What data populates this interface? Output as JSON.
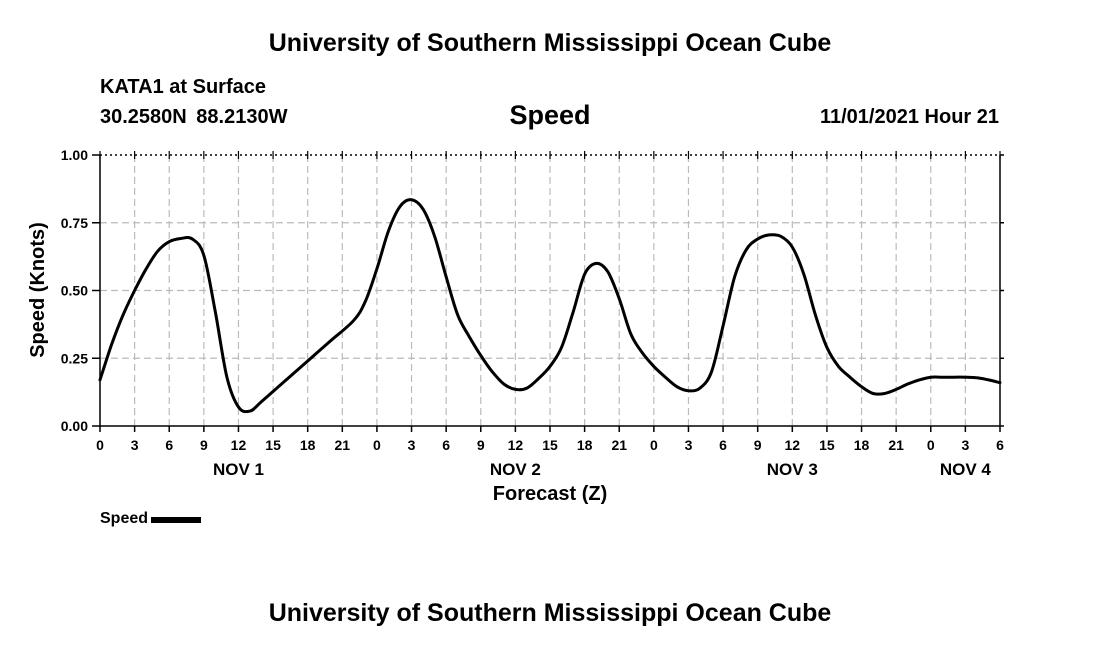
{
  "header": {
    "title": "University of Southern Mississippi Ocean Cube",
    "station": "KATA1 at Surface",
    "coords": "30.2580N  88.2130W",
    "panel_title": "Speed",
    "timestamp": "11/01/2021 Hour 21"
  },
  "footer": {
    "title": "University of Southern Mississippi Ocean Cube"
  },
  "legend": {
    "label": "Speed"
  },
  "chart_data": {
    "type": "line",
    "title": "Speed",
    "xlabel": "Forecast (Z)",
    "ylabel": "Speed (Knots)",
    "ylim": [
      0,
      1
    ],
    "xlim_hours": [
      0,
      78
    ],
    "grid": true,
    "y_ticks": [
      0,
      0.25,
      0.5,
      0.75,
      1.0
    ],
    "y_tick_labels": [
      "0.00",
      "0.25",
      "0.50",
      "0.75",
      "1.00"
    ],
    "x_tick_hours": [
      0,
      3,
      6,
      9,
      12,
      15,
      18,
      21,
      24,
      27,
      30,
      33,
      36,
      39,
      42,
      45,
      48,
      51,
      54,
      57,
      60,
      63,
      66,
      69,
      72,
      75,
      78
    ],
    "x_tick_labels": [
      "0",
      "3",
      "6",
      "9",
      "12",
      "15",
      "18",
      "21",
      "0",
      "3",
      "6",
      "9",
      "12",
      "15",
      "18",
      "21",
      "0",
      "3",
      "6",
      "9",
      "12",
      "15",
      "18",
      "21",
      "0",
      "3",
      "6"
    ],
    "day_labels": [
      {
        "label": "NOV 1",
        "hour": 12
      },
      {
        "label": "NOV 2",
        "hour": 36
      },
      {
        "label": "NOV 3",
        "hour": 60
      },
      {
        "label": "NOV 4",
        "hour": 75
      }
    ],
    "series": [
      {
        "name": "Speed",
        "color": "#000000",
        "x": [
          0,
          1,
          2,
          3,
          4,
          5,
          6,
          7,
          8,
          9,
          10,
          11,
          12,
          13,
          14,
          16,
          18,
          20,
          22,
          23,
          24,
          25,
          26,
          27,
          28,
          29,
          30,
          31,
          32,
          33,
          34,
          35,
          36,
          37,
          38,
          39,
          40,
          41,
          42,
          43,
          44,
          45,
          46,
          47,
          48,
          49,
          50,
          51,
          52,
          53,
          54,
          55,
          56,
          57,
          58,
          59,
          60,
          61,
          62,
          63,
          64,
          65,
          66,
          67,
          68,
          69,
          70,
          71,
          72,
          73,
          74,
          75,
          76,
          77,
          78
        ],
        "values": [
          0.17,
          0.3,
          0.41,
          0.5,
          0.58,
          0.645,
          0.68,
          0.692,
          0.69,
          0.63,
          0.42,
          0.18,
          0.07,
          0.055,
          0.09,
          0.165,
          0.24,
          0.315,
          0.39,
          0.46,
          0.58,
          0.72,
          0.81,
          0.835,
          0.8,
          0.7,
          0.55,
          0.41,
          0.33,
          0.26,
          0.2,
          0.155,
          0.135,
          0.14,
          0.175,
          0.22,
          0.29,
          0.42,
          0.56,
          0.6,
          0.57,
          0.47,
          0.34,
          0.27,
          0.22,
          0.18,
          0.145,
          0.13,
          0.14,
          0.2,
          0.37,
          0.55,
          0.65,
          0.69,
          0.705,
          0.7,
          0.66,
          0.56,
          0.41,
          0.29,
          0.22,
          0.18,
          0.145,
          0.12,
          0.12,
          0.135,
          0.155,
          0.17,
          0.18,
          0.18,
          0.18,
          0.18,
          0.178,
          0.17,
          0.16
        ]
      }
    ]
  }
}
